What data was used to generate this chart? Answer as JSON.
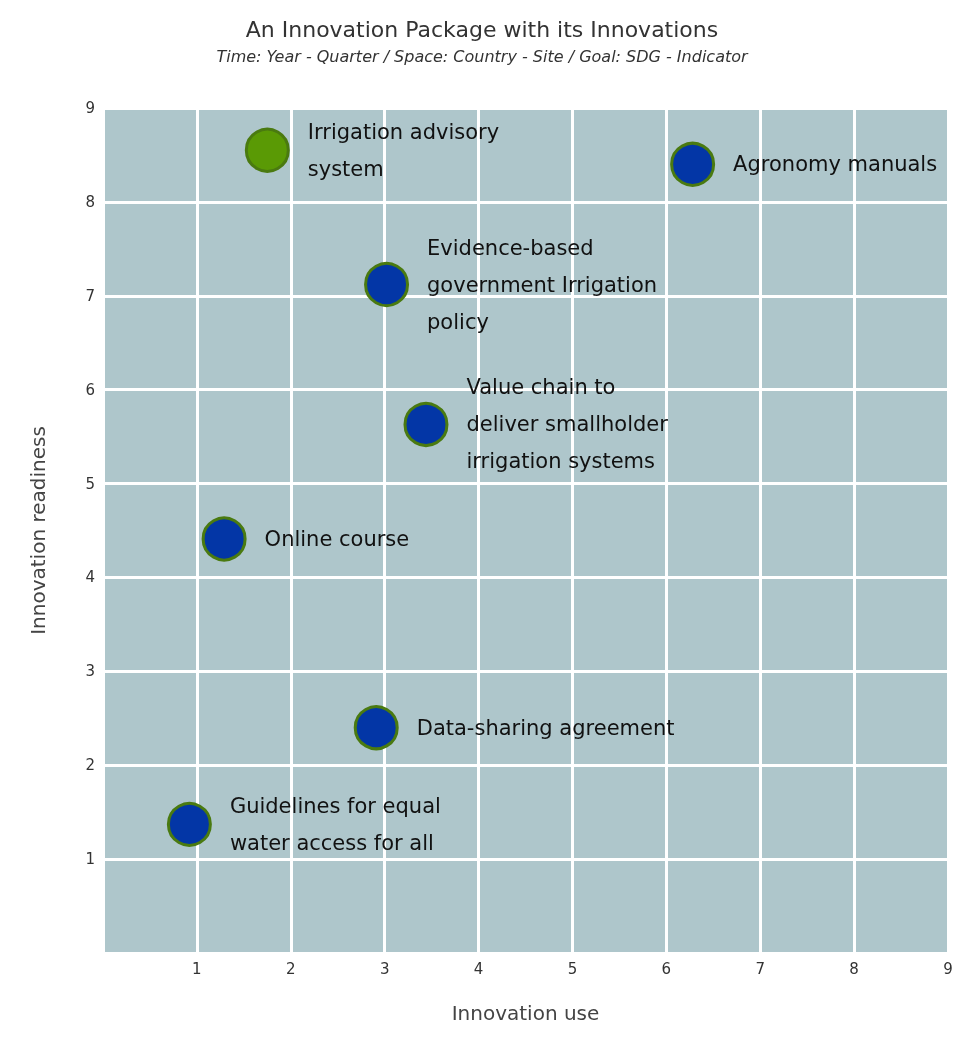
{
  "chart_data": {
    "type": "scatter",
    "title": "An Innovation Package with its Innovations",
    "subtitle": "Time: Year - Quarter / Space: Country - Site / Goal: SDG - Indicator",
    "xlabel": "Innovation use",
    "ylabel": "Innovation readiness",
    "xlim": [
      0,
      9
    ],
    "ylim": [
      0,
      9
    ],
    "xticks": [
      1,
      2,
      3,
      4,
      5,
      6,
      7,
      8,
      9
    ],
    "yticks": [
      1,
      2,
      3,
      4,
      5,
      6,
      7,
      8,
      9
    ],
    "grid": true,
    "legend": false,
    "marker": "circle",
    "series": [
      {
        "name": "Irrigation advisory\nsystem",
        "color": "#5a9a05",
        "x": [
          1.75
        ],
        "values": [
          8.55
        ]
      },
      {
        "name": "Agronomy manuals",
        "color": "#0336a6",
        "x": [
          6.28
        ],
        "values": [
          8.4
        ]
      },
      {
        "name": "Evidence-based\ngovernment Irrigation\npolicy",
        "color": "#0336a6",
        "x": [
          3.02
        ],
        "values": [
          7.12
        ]
      },
      {
        "name": "Value chain to\ndeliver smallholder\nirrigation systems",
        "color": "#0336a6",
        "x": [
          3.44
        ],
        "values": [
          5.63
        ]
      },
      {
        "name": "Online course",
        "color": "#0336a6",
        "x": [
          1.29
        ],
        "values": [
          4.41
        ]
      },
      {
        "name": "Data-sharing agreement",
        "color": "#0336a6",
        "x": [
          2.91
        ],
        "values": [
          2.4
        ]
      },
      {
        "name": "Guidelines for equal\nwater access for all",
        "color": "#0336a6",
        "x": [
          0.92
        ],
        "values": [
          1.37
        ]
      }
    ]
  }
}
